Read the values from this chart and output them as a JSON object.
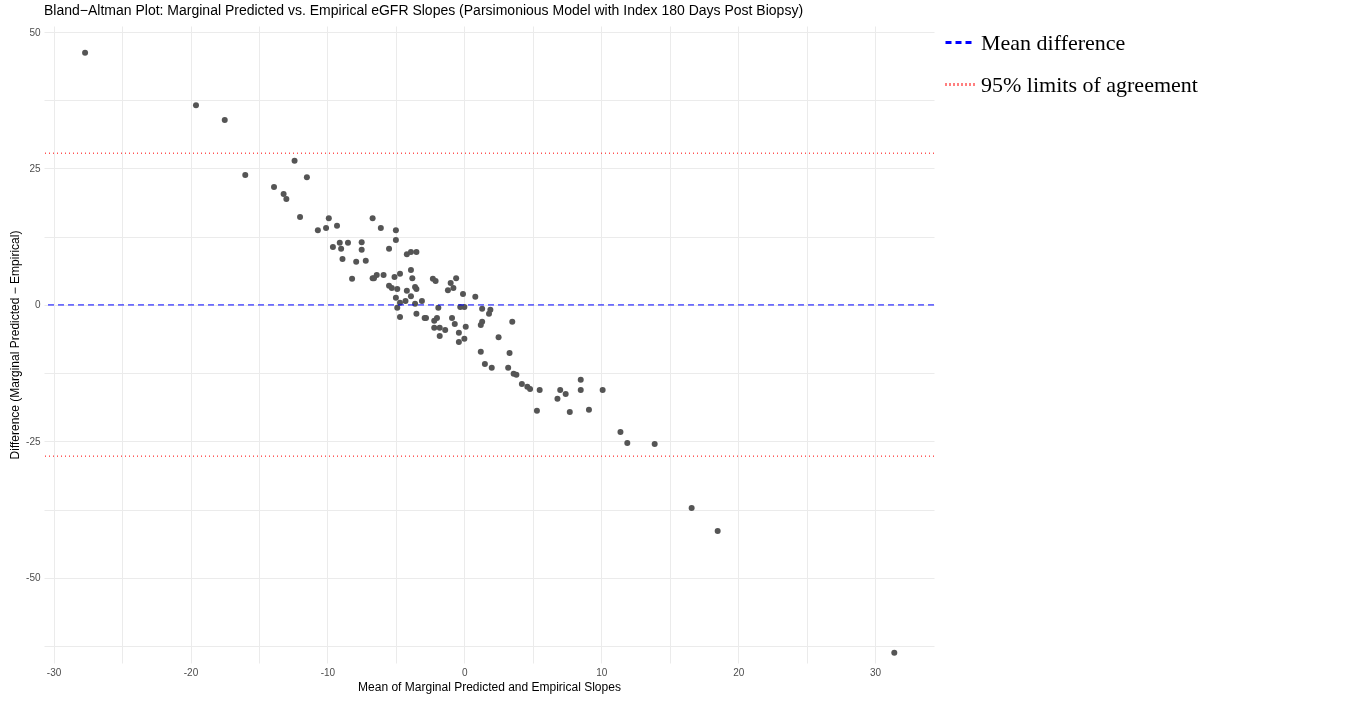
{
  "chart_data": {
    "type": "scatter",
    "title": "Bland−Altman Plot: Marginal Predicted vs. Empirical eGFR Slopes (Parsimonious Model with Index 180 Days Post Biopsy)",
    "xlabel": "Mean of Marginal Predicted and Empirical Slopes",
    "ylabel": "Difference (Marginal Predicted − Empirical)",
    "x": [
      -27.7,
      -19.6,
      -17.5,
      -16.0,
      -13.9,
      -13.2,
      -13.0,
      -12.4,
      -11.5,
      -12.0,
      -10.7,
      -10.1,
      -9.9,
      -9.3,
      -9.6,
      -9.1,
      -9.0,
      -8.9,
      -8.5,
      -7.5,
      -7.5,
      -7.9,
      -7.2,
      -8.2,
      -6.7,
      -6.1,
      -5.0,
      -5.0,
      -5.5,
      -4.2,
      -3.9,
      -3.5,
      -6.7,
      -6.6,
      -6.4,
      -5.9,
      -5.1,
      -4.7,
      -3.9,
      -3.8,
      -5.5,
      -5.3,
      -4.9,
      -4.2,
      -3.6,
      -3.5,
      -3.9,
      -5.0,
      -4.3,
      -4.7,
      -4.9,
      -4.7,
      -3.1,
      -3.6,
      -3.5,
      -2.9,
      -2.8,
      -2.3,
      -2.1,
      -1.0,
      -0.6,
      -1.2,
      -0.8,
      -0.1,
      0.8,
      -1.9,
      -2.0,
      -2.2,
      -2.2,
      -1.8,
      -1.4,
      -1.8,
      -0.9,
      -0.7,
      0.1,
      -0.4,
      -0.4,
      0.0,
      -0.3,
      0.0,
      1.3,
      1.9,
      1.8,
      3.5,
      1.3,
      1.2,
      2.5,
      1.2,
      3.3,
      1.5,
      2.0,
      3.2,
      3.6,
      3.8,
      4.2,
      4.6,
      4.8,
      5.5,
      5.3,
      6.8,
      7.0,
      7.4,
      7.7,
      8.5,
      8.5,
      9.1,
      10.1,
      11.4,
      11.9,
      13.9,
      16.6,
      18.5,
      31.4
    ],
    "series": [
      {
        "color": "#555555",
        "values": [
          46.2,
          36.6,
          33.9,
          23.8,
          21.6,
          20.3,
          19.4,
          26.4,
          23.4,
          16.1,
          13.7,
          14.1,
          15.9,
          14.5,
          10.6,
          11.4,
          10.3,
          8.4,
          11.4,
          11.5,
          10.1,
          7.9,
          8.1,
          4.8,
          15.9,
          14.1,
          13.7,
          11.9,
          10.3,
          9.3,
          9.7,
          9.7,
          4.9,
          4.9,
          5.5,
          5.5,
          5.1,
          5.7,
          6.4,
          4.9,
          3.5,
          3.1,
          2.9,
          2.6,
          3.3,
          2.9,
          1.6,
          1.3,
          0.7,
          0.4,
          -0.5,
          -2.2,
          0.7,
          0.2,
          -1.6,
          -2.4,
          -2.4,
          4.8,
          4.4,
          4.0,
          4.9,
          2.7,
          3.1,
          2.0,
          1.5,
          -0.5,
          -2.4,
          -2.9,
          -4.2,
          -4.2,
          -4.6,
          -5.7,
          -2.4,
          -3.5,
          -4.0,
          -5.1,
          -6.8,
          -6.2,
          -0.4,
          -0.4,
          -0.7,
          -0.9,
          -1.6,
          -3.1,
          -3.1,
          -3.7,
          -5.9,
          -8.6,
          -8.8,
          -10.8,
          -11.5,
          -11.5,
          -12.6,
          -12.8,
          -14.5,
          -15.0,
          -15.4,
          -15.6,
          -19.4,
          -17.2,
          -15.6,
          -16.3,
          -19.6,
          -13.7,
          -15.6,
          -19.2,
          -15.6,
          -23.3,
          -25.3,
          -25.5,
          -37.2,
          -41.4,
          -63.7
        ]
      }
    ],
    "xlim": [
      -30.7,
      34.3
    ],
    "xticks": [
      -30,
      {
        "value": -25,
        "label": null
      },
      -20,
      {
        "value": -15,
        "label": null
      },
      -10,
      {
        "value": -5,
        "label": null
      },
      0,
      {
        "value": 5,
        "label": null
      },
      10,
      {
        "value": 15,
        "label": null
      },
      20,
      {
        "value": 25,
        "label": null
      },
      30
    ],
    "ylim": [
      -65.6,
      51.1
    ],
    "yticks": [
      {
        "value": -62.5,
        "label": null
      },
      -50,
      {
        "value": -37.5,
        "label": null
      },
      -25,
      {
        "value": -12.5,
        "label": null
      },
      0,
      {
        "value": 12.5,
        "label": null
      },
      25,
      {
        "value": 37.5,
        "label": null
      },
      50
    ],
    "ref_lines": [
      {
        "axis": "y",
        "value": 0,
        "label": "Mean difference",
        "color": "#0000ff",
        "line_style": "dashed"
      },
      {
        "axis": "y",
        "value": 27.8,
        "label": "95% limits of agreement",
        "color": "#ff0000",
        "line_style": "dotted"
      },
      {
        "axis": "y",
        "value": -27.7,
        "color": "#ff0000",
        "line_style": "dotted"
      }
    ],
    "grid": true,
    "legend": "right",
    "marker": "circle"
  }
}
